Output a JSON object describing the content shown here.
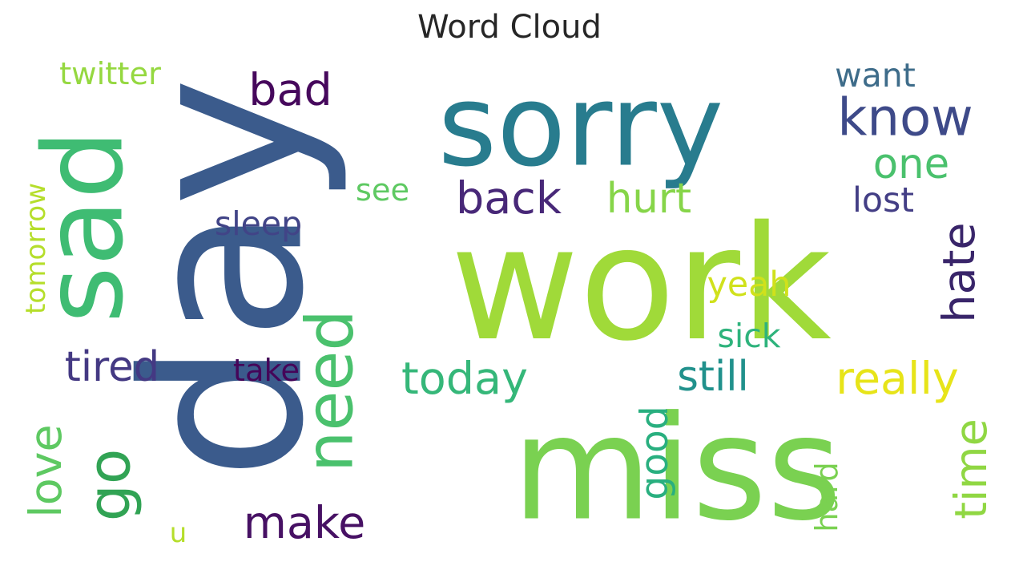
{
  "title": "Word Cloud",
  "chart_data": {
    "type": "wordcloud",
    "title": "Word Cloud",
    "words": [
      {
        "text": "work",
        "color": "#a0da39"
      },
      {
        "text": "miss",
        "color": "#7ad151"
      },
      {
        "text": "day",
        "color": "#3b5b8c"
      },
      {
        "text": "sorry",
        "color": "#287c8e"
      },
      {
        "text": "sad",
        "color": "#3fbc73"
      },
      {
        "text": "know",
        "color": "#3e4a89"
      },
      {
        "text": "need",
        "color": "#4ac16d"
      },
      {
        "text": "go",
        "color": "#31a354"
      },
      {
        "text": "back",
        "color": "#482878"
      },
      {
        "text": "hurt",
        "color": "#86d549"
      },
      {
        "text": "bad",
        "color": "#46085c"
      },
      {
        "text": "today",
        "color": "#35b779"
      },
      {
        "text": "still",
        "color": "#21918c"
      },
      {
        "text": "really",
        "color": "#e7e419"
      },
      {
        "text": "one",
        "color": "#4ac16d"
      },
      {
        "text": "hate",
        "color": "#39256a"
      },
      {
        "text": "tired",
        "color": "#443983"
      },
      {
        "text": "make",
        "color": "#471164"
      },
      {
        "text": "love",
        "color": "#5ec962"
      },
      {
        "text": "time",
        "color": "#90d743"
      },
      {
        "text": "good",
        "color": "#29af7f"
      },
      {
        "text": "sleep",
        "color": "#414487"
      },
      {
        "text": "want",
        "color": "#3e6c8a"
      },
      {
        "text": "lost",
        "color": "#433e85"
      },
      {
        "text": "see",
        "color": "#5ec962"
      },
      {
        "text": "yeah",
        "color": "#d0e11c"
      },
      {
        "text": "sick",
        "color": "#2eb37c"
      },
      {
        "text": "take",
        "color": "#450559"
      },
      {
        "text": "twitter",
        "color": "#95d840"
      },
      {
        "text": "tomorrow",
        "color": "#b5de2b"
      },
      {
        "text": "hard",
        "color": "#7ad151"
      },
      {
        "text": "u",
        "color": "#b5de2b"
      }
    ]
  }
}
